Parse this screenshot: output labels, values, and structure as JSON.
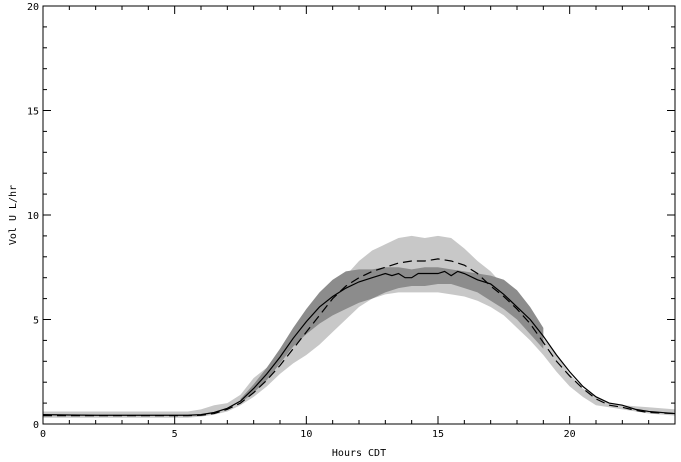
{
  "chart_data": {
    "type": "line",
    "title": "",
    "xlabel": "Hours CDT",
    "ylabel": "Vol U L/hr",
    "xlim": [
      0,
      24
    ],
    "ylim": [
      0,
      20
    ],
    "x_ticks": [
      0,
      5,
      10,
      15,
      20
    ],
    "y_ticks": [
      0,
      5,
      10,
      15,
      20
    ],
    "grid": false,
    "colors": {
      "light_band": "#c8c8c8",
      "dark_band": "#8c8c8c",
      "line": "#000000"
    },
    "bands": [
      {
        "fill": "light",
        "x": [
          0,
          2,
          4,
          5.5,
          6,
          6.5,
          7,
          7.5,
          8,
          8.5,
          9,
          9.5,
          10,
          10.5,
          11,
          11.5,
          12,
          12.5,
          13,
          13.5,
          14,
          14.5,
          15,
          15.5,
          16,
          16.5,
          17,
          17.5,
          18,
          18.5,
          19,
          19.5,
          20,
          20.5,
          21,
          21.5,
          22,
          23,
          24
        ],
        "upper": [
          0.6,
          0.6,
          0.6,
          0.6,
          0.7,
          0.9,
          1.0,
          1.4,
          2.2,
          2.7,
          3.4,
          4.1,
          4.9,
          5.6,
          6.3,
          7.1,
          7.8,
          8.3,
          8.6,
          8.9,
          9.0,
          8.9,
          9.0,
          8.9,
          8.4,
          7.8,
          7.3,
          6.6,
          5.9,
          5.1,
          4.1,
          3.3,
          2.4,
          1.7,
          1.3,
          1.0,
          0.9,
          0.8,
          0.7
        ],
        "lower": [
          0.3,
          0.3,
          0.3,
          0.3,
          0.35,
          0.45,
          0.6,
          0.9,
          1.3,
          1.8,
          2.4,
          2.9,
          3.3,
          3.8,
          4.4,
          5.0,
          5.6,
          6.0,
          6.2,
          6.3,
          6.3,
          6.3,
          6.3,
          6.2,
          6.1,
          5.9,
          5.6,
          5.2,
          4.6,
          4.0,
          3.3,
          2.5,
          1.8,
          1.3,
          0.9,
          0.8,
          0.7,
          0.5,
          0.4
        ]
      },
      {
        "fill": "dark",
        "x": [
          7.5,
          8,
          8.5,
          9,
          9.5,
          10,
          10.5,
          11,
          11.5,
          12,
          12.5,
          13,
          13.5,
          14,
          14.5,
          15,
          15.5,
          16,
          16.5,
          17,
          17.5,
          18,
          18.5,
          19
        ],
        "upper": [
          1.2,
          1.9,
          2.7,
          3.6,
          4.6,
          5.5,
          6.3,
          6.9,
          7.3,
          7.4,
          7.4,
          7.5,
          7.5,
          7.4,
          7.5,
          7.5,
          7.4,
          7.3,
          7.2,
          7.1,
          6.9,
          6.4,
          5.6,
          4.6
        ],
        "lower": [
          1.0,
          1.5,
          2.1,
          2.9,
          3.7,
          4.3,
          4.8,
          5.2,
          5.5,
          5.8,
          6.0,
          6.3,
          6.5,
          6.6,
          6.6,
          6.7,
          6.7,
          6.5,
          6.3,
          5.9,
          5.5,
          5.0,
          4.3,
          3.6
        ]
      }
    ],
    "series": [
      {
        "style": "solid",
        "x": [
          0,
          1,
          2,
          3,
          4,
          5,
          5.5,
          6,
          6.5,
          7,
          7.5,
          8,
          8.5,
          9,
          9.5,
          10,
          10.5,
          11,
          11.5,
          12,
          12.5,
          13,
          13.25,
          13.5,
          13.75,
          14,
          14.25,
          14.5,
          14.75,
          15,
          15.25,
          15.5,
          15.75,
          16,
          16.5,
          17,
          17.5,
          18,
          18.5,
          19,
          19.5,
          20,
          20.5,
          21,
          21.5,
          22,
          22.5,
          23,
          24
        ],
        "y": [
          0.45,
          0.43,
          0.42,
          0.42,
          0.42,
          0.42,
          0.42,
          0.45,
          0.55,
          0.75,
          1.1,
          1.7,
          2.4,
          3.2,
          4.1,
          4.9,
          5.6,
          6.1,
          6.5,
          6.8,
          7.0,
          7.2,
          7.1,
          7.2,
          7.0,
          7.0,
          7.2,
          7.2,
          7.2,
          7.2,
          7.3,
          7.1,
          7.3,
          7.2,
          6.9,
          6.7,
          6.2,
          5.6,
          5.0,
          4.2,
          3.3,
          2.5,
          1.8,
          1.3,
          1.0,
          0.9,
          0.7,
          0.6,
          0.5
        ]
      },
      {
        "style": "dashed",
        "x": [
          0,
          1,
          2,
          3,
          4,
          5,
          5.5,
          6,
          6.5,
          7,
          7.5,
          8,
          8.5,
          9,
          9.5,
          10,
          10.5,
          11,
          11.5,
          12,
          12.5,
          13,
          13.5,
          14,
          14.5,
          15,
          15.5,
          16,
          16.5,
          17,
          17.5,
          18,
          18.5,
          19,
          19.5,
          20,
          20.5,
          21,
          21.5,
          22,
          22.5,
          23,
          24
        ],
        "y": [
          0.4,
          0.4,
          0.4,
          0.4,
          0.4,
          0.4,
          0.4,
          0.42,
          0.5,
          0.7,
          1.0,
          1.5,
          2.1,
          2.8,
          3.6,
          4.4,
          5.2,
          6.0,
          6.6,
          7.0,
          7.3,
          7.5,
          7.7,
          7.8,
          7.8,
          7.9,
          7.8,
          7.6,
          7.2,
          6.6,
          6.1,
          5.5,
          4.8,
          3.9,
          3.0,
          2.3,
          1.7,
          1.2,
          0.9,
          0.8,
          0.65,
          0.55,
          0.5
        ]
      }
    ]
  }
}
